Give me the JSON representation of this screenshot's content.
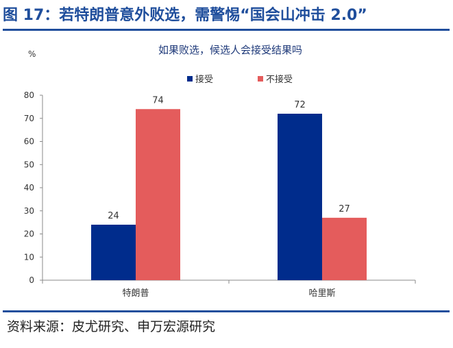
{
  "figure": {
    "title": "图 17：若特朗普意外败选，需警惕“国会山冲击 2.0”",
    "source": "资料来源：皮尤研究、申万宏源研究"
  },
  "chart_data": {
    "type": "bar",
    "title": "如果败选，候选人会接受结果吗",
    "ylabel": "%",
    "xlabel": "",
    "ylim": [
      0,
      80
    ],
    "yticks": [
      0,
      10,
      20,
      30,
      40,
      50,
      60,
      70,
      80
    ],
    "categories": [
      "特朗普",
      "哈里斯"
    ],
    "series": [
      {
        "name": "接受",
        "color": "#002c8c",
        "values": [
          24,
          72
        ]
      },
      {
        "name": "不接受",
        "color": "#e45c5c",
        "values": [
          74,
          27
        ]
      }
    ],
    "legend_position": "top-right",
    "grid": false,
    "data_labels": true
  }
}
